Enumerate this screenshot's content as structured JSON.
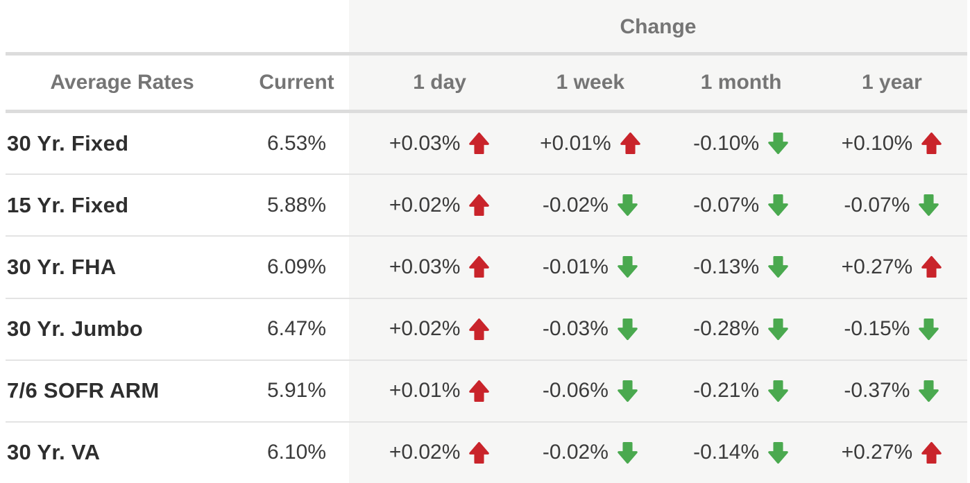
{
  "chart_data": {
    "type": "table",
    "group_header": "Change",
    "columns": [
      "Average Rates",
      "Current",
      "1 day",
      "1 week",
      "1 month",
      "1 year"
    ],
    "rows": [
      {
        "label": "30 Yr. Fixed",
        "current": "6.53%",
        "changes": [
          {
            "value": "+0.03%",
            "direction": "up"
          },
          {
            "value": "+0.01%",
            "direction": "up"
          },
          {
            "value": "-0.10%",
            "direction": "down"
          },
          {
            "value": "+0.10%",
            "direction": "up"
          }
        ]
      },
      {
        "label": "15 Yr. Fixed",
        "current": "5.88%",
        "changes": [
          {
            "value": "+0.02%",
            "direction": "up"
          },
          {
            "value": "-0.02%",
            "direction": "down"
          },
          {
            "value": "-0.07%",
            "direction": "down"
          },
          {
            "value": "-0.07%",
            "direction": "down"
          }
        ]
      },
      {
        "label": "30 Yr. FHA",
        "current": "6.09%",
        "changes": [
          {
            "value": "+0.03%",
            "direction": "up"
          },
          {
            "value": "-0.01%",
            "direction": "down"
          },
          {
            "value": "-0.13%",
            "direction": "down"
          },
          {
            "value": "+0.27%",
            "direction": "up"
          }
        ]
      },
      {
        "label": "30 Yr. Jumbo",
        "current": "6.47%",
        "changes": [
          {
            "value": "+0.02%",
            "direction": "up"
          },
          {
            "value": "-0.03%",
            "direction": "down"
          },
          {
            "value": "-0.28%",
            "direction": "down"
          },
          {
            "value": "-0.15%",
            "direction": "down"
          }
        ]
      },
      {
        "label": "7/6 SOFR ARM",
        "current": "5.91%",
        "changes": [
          {
            "value": "+0.01%",
            "direction": "up"
          },
          {
            "value": "-0.06%",
            "direction": "down"
          },
          {
            "value": "-0.21%",
            "direction": "down"
          },
          {
            "value": "-0.37%",
            "direction": "down"
          }
        ]
      },
      {
        "label": "30 Yr. VA",
        "current": "6.10%",
        "changes": [
          {
            "value": "+0.02%",
            "direction": "up"
          },
          {
            "value": "-0.02%",
            "direction": "down"
          },
          {
            "value": "-0.14%",
            "direction": "down"
          },
          {
            "value": "+0.27%",
            "direction": "up"
          }
        ]
      }
    ]
  },
  "icons": {
    "up": "up-arrow-icon",
    "down": "down-arrow-icon"
  },
  "colors": {
    "up_arrow_red": "#c9242b",
    "down_arrow_green": "#4aa94f",
    "header_text_gray": "#757575",
    "label_text": "#2e2e2e",
    "value_text": "#3b3b3b",
    "change_panel_gray": "#f6f6f5",
    "header_divider": "#dcdcdc",
    "row_divider": "#e3e3e3"
  }
}
